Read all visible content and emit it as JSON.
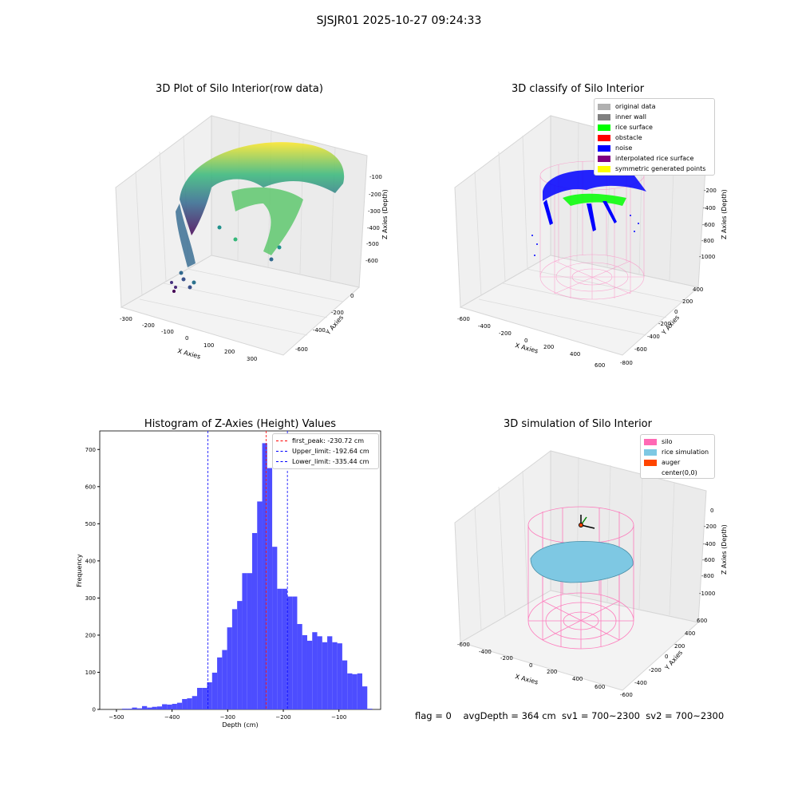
{
  "suptitle": "SJSJR01 2025-10-27 09:24:33",
  "colors": {
    "histogram_bar": "#4d4dff",
    "first_peak_line": "#ff0000",
    "limit_lines": "#0000ff",
    "silo": "#ff69b4",
    "rice_simulation": "#7ec8e3",
    "auger": "#ff4500",
    "rice_surface": "#00ff00",
    "noise": "#0000ff"
  },
  "panels": {
    "raw": {
      "title": "3D Plot of Silo Interior(row data)",
      "x_label": "X Axies",
      "y_label": "Y Axies",
      "z_label": "Z Axies (Depth)",
      "x_ticks": [
        "-300",
        "-200",
        "-100",
        "0",
        "100",
        "200",
        "300"
      ],
      "y_ticks": [
        "0",
        "-200",
        "-400",
        "-600"
      ],
      "z_ticks": [
        "-100",
        "-200",
        "-300",
        "-400",
        "-500",
        "-600"
      ]
    },
    "classify": {
      "title": "3D classify of Silo Interior",
      "x_label": "X Axies",
      "y_label": "Y Axies",
      "z_label": "Z Axies (Depth)",
      "x_ticks": [
        "-600",
        "-400",
        "-200",
        "0",
        "200",
        "400",
        "600"
      ],
      "y_ticks": [
        "400",
        "200",
        "0",
        "-200",
        "-400",
        "-600",
        "-800"
      ],
      "z_ticks": [
        "0",
        "-200",
        "-400",
        "-600",
        "-800",
        "-1000"
      ],
      "legend": [
        {
          "label": "original data",
          "color": "#b0b0b0"
        },
        {
          "label": "inner wall",
          "color": "#808080"
        },
        {
          "label": "rice surface",
          "color": "#00ff00"
        },
        {
          "label": "obstacle",
          "color": "#ff0000"
        },
        {
          "label": "noise",
          "color": "#0000ff"
        },
        {
          "label": "interpolated rice surface",
          "color": "#800080"
        },
        {
          "label": "symmetric generated points",
          "color": "#ffff00"
        }
      ]
    },
    "simulation": {
      "title": "3D simulation of Silo Interior",
      "x_label": "X Axies",
      "y_label": "Y Axies",
      "z_label": "Z Axies (Depth)",
      "x_ticks": [
        "-600",
        "-400",
        "-200",
        "0",
        "200",
        "400",
        "600"
      ],
      "y_ticks": [
        "600",
        "400",
        "200",
        "0",
        "-200",
        "-400",
        "-600"
      ],
      "z_ticks": [
        "0",
        "-200",
        "-400",
        "-600",
        "-800",
        "-1000"
      ],
      "legend": [
        {
          "label": "silo",
          "color": "#ff69b4"
        },
        {
          "label": "rice simulation",
          "color": "#7ec8e3"
        },
        {
          "label": "auger",
          "color": "#ff4500"
        },
        {
          "label": "center(0,0)",
          "color": "none"
        }
      ]
    }
  },
  "status_line": "flag = 0    avgDepth = 364 cm  sv1 = 700~2300  sv2 = 700~2300",
  "chart_data": {
    "type": "bar",
    "title": "Histogram of Z-Axies (Height) Values",
    "xlabel": "Depth (cm)",
    "ylabel": "Frequency",
    "xlim": [
      -530,
      -25
    ],
    "ylim": [
      0,
      750
    ],
    "x_ticks": [
      -500,
      -400,
      -300,
      -200,
      -100
    ],
    "y_ticks": [
      0,
      100,
      200,
      300,
      400,
      500,
      600,
      700
    ],
    "bin_width": 9,
    "bin_starts": [
      -490,
      -481,
      -472,
      -463,
      -454,
      -445,
      -436,
      -427,
      -418,
      -409,
      -400,
      -391,
      -382,
      -373,
      -364,
      -355,
      -346,
      -337,
      -328,
      -319,
      -310,
      -301,
      -292,
      -283,
      -274,
      -265,
      -256,
      -247,
      -238,
      -229,
      -220,
      -211,
      -202,
      -193,
      -184,
      -175,
      -166,
      -157,
      -148,
      -139,
      -130,
      -121,
      -112,
      -103,
      -94,
      -85,
      -76,
      -67,
      -58,
      -49,
      -40
    ],
    "counts": [
      2,
      2,
      5,
      3,
      9,
      5,
      7,
      8,
      14,
      13,
      15,
      18,
      28,
      30,
      36,
      58,
      58,
      73,
      99,
      140,
      160,
      221,
      270,
      292,
      367,
      367,
      475,
      560,
      717,
      650,
      438,
      325,
      325,
      304,
      304,
      230,
      200,
      185,
      208,
      197,
      181,
      197,
      181,
      178,
      132,
      97,
      95,
      97,
      62,
      2,
      0
    ],
    "vlines": [
      {
        "label": "first_peak: -230.72 cm",
        "x": -230.72,
        "color": "#ff0000"
      },
      {
        "label": "Upper_limit: -192.64 cm",
        "x": -192.64,
        "color": "#0000ff"
      },
      {
        "label": "Lower_limit: -335.44 cm",
        "x": -335.44,
        "color": "#0000ff"
      }
    ]
  }
}
